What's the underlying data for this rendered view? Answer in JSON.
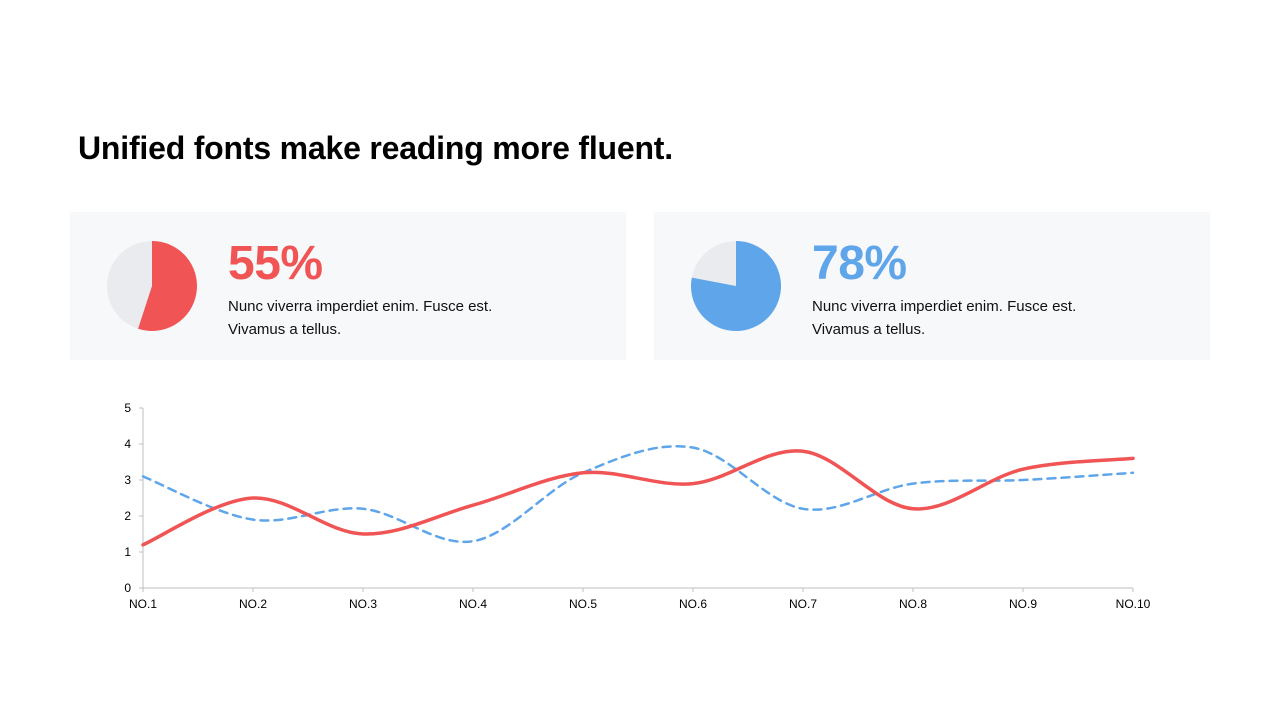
{
  "title": "Unified fonts make reading more fluent.",
  "colors": {
    "red": "#f05454",
    "blue": "#5fa5ea",
    "pie_rest": "#e9ebef",
    "card_bg": "#f7f8fa"
  },
  "cards": [
    {
      "percent_text": "55%",
      "value": 0.55,
      "color": "#f05454",
      "line1": "Nunc viverra imperdiet enim. Fusce est.",
      "line2": "Vivamus a tellus."
    },
    {
      "percent_text": "78%",
      "value": 0.78,
      "color": "#5fa5ea",
      "line1": "Nunc viverra imperdiet enim. Fusce est.",
      "line2": "Vivamus a tellus."
    }
  ],
  "chart_data": {
    "type": "line",
    "categories": [
      "NO.1",
      "NO.2",
      "NO.3",
      "NO.4",
      "NO.5",
      "NO.6",
      "NO.7",
      "NO.8",
      "NO.9",
      "NO.10"
    ],
    "series": [
      {
        "values": [
          1.2,
          2.5,
          1.5,
          2.3,
          3.2,
          2.9,
          3.8,
          2.2,
          3.3,
          3.6
        ],
        "color": "#f05454",
        "style": "solid"
      },
      {
        "values": [
          3.1,
          1.9,
          2.2,
          1.3,
          3.2,
          3.9,
          2.2,
          2.9,
          3.0,
          3.2
        ],
        "color": "#5fa5ea",
        "style": "dashed"
      }
    ],
    "ylim": [
      0,
      5
    ],
    "yticks": [
      0,
      1,
      2,
      3,
      4,
      5
    ],
    "grid": false,
    "smooth": true
  }
}
